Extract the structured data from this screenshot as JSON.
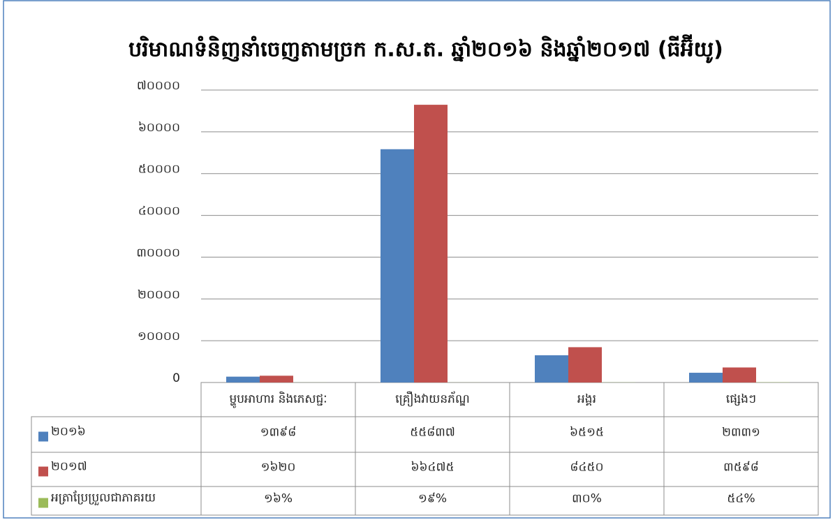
{
  "chart_data": {
    "type": "bar",
    "title": "បរិមាណទំនិញនាំចេញតាមច្រក ក.ស.ត.  ឆ្នាំ២០១៦ និងឆ្នាំ២០១៧ (ធីអ៊ីយូ)",
    "categories": [
      "ម្ហូបអាហារ និងភេសជ្ជៈ",
      "គ្រឿងវាយនភ័ណ្ឌ",
      "អង្គរ",
      "ផ្សេងៗ"
    ],
    "series": [
      {
        "name": "២០១៦",
        "color": "#4f81bd",
        "values": [
          1398,
          55837,
          6515,
          2331
        ],
        "value_labels": [
          "១៣៩៨",
          "៥៥៨៣៧",
          "៦៥១៥",
          "២៣៣១"
        ]
      },
      {
        "name": "២០១៧",
        "color": "#c0504d",
        "values": [
          1620,
          66475,
          8450,
          3598
        ],
        "value_labels": [
          "១៦២០",
          "៦៦៤៧៥",
          "៨៤៥០",
          "៣៥៩៨"
        ]
      },
      {
        "name": "អត្រាប្រែប្រួលជាភាគរយ",
        "color": "#9bbb59",
        "values": [
          16,
          19,
          30,
          54
        ],
        "value_labels": [
          "១៦%",
          "១៩%",
          "៣០%",
          "៥៤%"
        ]
      }
    ],
    "ylim": [
      0,
      70000
    ],
    "yticks": [
      {
        "value": 0,
        "label": "0"
      },
      {
        "value": 10000,
        "label": "១០០០០"
      },
      {
        "value": 20000,
        "label": "២០០០០"
      },
      {
        "value": 30000,
        "label": "៣០០០០"
      },
      {
        "value": 40000,
        "label": "៤០០០០"
      },
      {
        "value": 50000,
        "label": "៥០០០០"
      },
      {
        "value": 60000,
        "label": "៦០០០០"
      },
      {
        "value": 70000,
        "label": "៧០០០០"
      }
    ],
    "grid": true
  }
}
